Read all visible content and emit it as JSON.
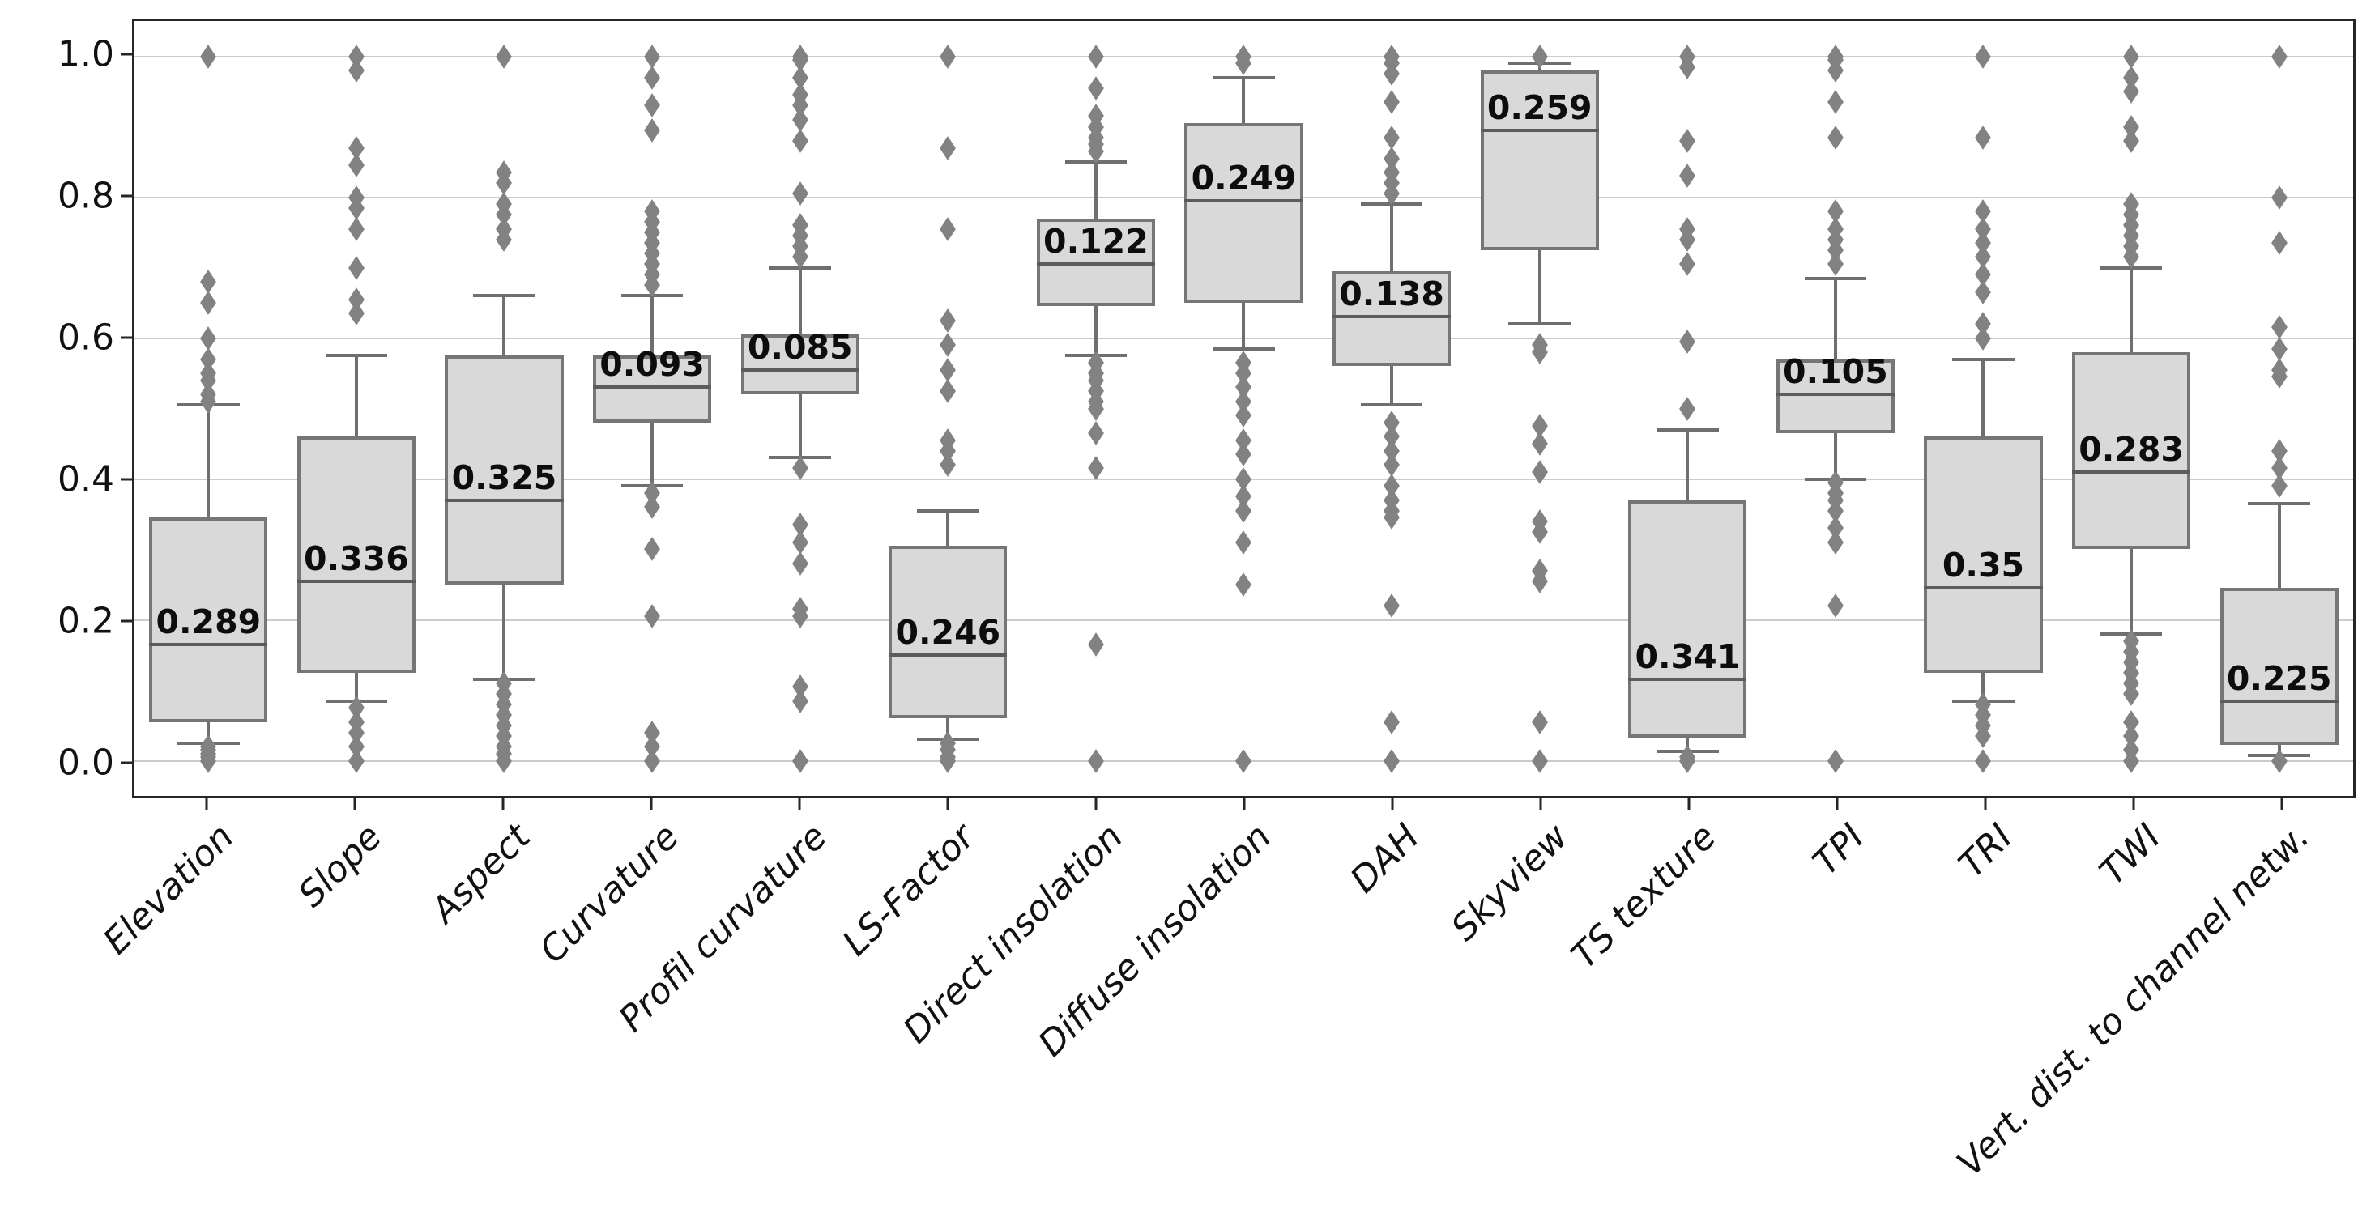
{
  "figure": {
    "background_color": "#ffffff",
    "plot_frame_color": "#262626",
    "grid_color": "#cbcbcb"
  },
  "style": {
    "box_fill_color": "#d9d9d9",
    "box_edge_color": "#767676",
    "median_line_color": "#5c5c5c",
    "whisker_color": "#6f6f6f",
    "outlier_color": "#828282",
    "annotation_color": "#0d0d0d",
    "tick_label_color": "#111111"
  },
  "chart_data": {
    "type": "box",
    "title": "",
    "xlabel": "",
    "ylabel": "",
    "ylim": [
      -0.05,
      1.05
    ],
    "grid": "horizontal",
    "legend": "none",
    "outlier_marker": "diamond",
    "yticks": [
      {
        "value": 0.0,
        "label": "0.0"
      },
      {
        "value": 0.2,
        "label": "0.2"
      },
      {
        "value": 0.4,
        "label": "0.4"
      },
      {
        "value": 0.6,
        "label": "0.6"
      },
      {
        "value": 0.8,
        "label": "0.8"
      },
      {
        "value": 1.0,
        "label": "1.0"
      }
    ],
    "categories": [
      "Elevation",
      "Slope",
      "Aspect",
      "Curvature",
      "Profil curvature",
      "LS-Factor",
      "Direct insolation",
      "Diffuse insolation",
      "DAH",
      "Skyview",
      "TS texture",
      "TPI",
      "TRI",
      "TWI",
      "Vert. dist. to channel netw."
    ],
    "annotation_meaning": "bold value printed above each median line",
    "series": [
      {
        "name": "Elevation",
        "label": "0.289",
        "whislo": 0.025,
        "q1": 0.055,
        "med": 0.165,
        "q3": 0.345,
        "whishi": 0.505,
        "fliers_high": [
          1.0,
          0.68,
          0.65,
          0.6,
          0.57,
          0.55,
          0.54,
          0.52,
          0.51
        ],
        "fliers_low": [
          0.02,
          0.015,
          0.01,
          0.005,
          0.0
        ]
      },
      {
        "name": "Slope",
        "label": "0.336",
        "whislo": 0.085,
        "q1": 0.125,
        "med": 0.255,
        "q3": 0.46,
        "whishi": 0.575,
        "fliers_high": [
          1.0,
          0.98,
          0.87,
          0.845,
          0.8,
          0.785,
          0.755,
          0.7,
          0.655,
          0.635
        ],
        "fliers_low": [
          0.075,
          0.055,
          0.04,
          0.02,
          0.0
        ]
      },
      {
        "name": "Aspect",
        "label": "0.325",
        "whislo": 0.115,
        "q1": 0.25,
        "med": 0.37,
        "q3": 0.575,
        "whishi": 0.66,
        "fliers_high": [
          1.0,
          0.835,
          0.82,
          0.79,
          0.775,
          0.755,
          0.74
        ],
        "fliers_low": [
          0.11,
          0.095,
          0.08,
          0.065,
          0.05,
          0.035,
          0.02,
          0.01,
          0.0
        ]
      },
      {
        "name": "Curvature",
        "label": "0.093",
        "whislo": 0.39,
        "q1": 0.48,
        "med": 0.53,
        "q3": 0.575,
        "whishi": 0.66,
        "fliers_high": [
          1.0,
          0.97,
          0.93,
          0.895,
          0.78,
          0.765,
          0.75,
          0.735,
          0.72,
          0.705,
          0.69,
          0.675
        ],
        "fliers_low": [
          0.38,
          0.36,
          0.3,
          0.205,
          0.04,
          0.02,
          0.0
        ]
      },
      {
        "name": "Profil curvature",
        "label": "0.085",
        "whislo": 0.43,
        "q1": 0.52,
        "med": 0.555,
        "q3": 0.605,
        "whishi": 0.7,
        "fliers_high": [
          1.0,
          0.995,
          0.97,
          0.945,
          0.93,
          0.91,
          0.88,
          0.805,
          0.76,
          0.745,
          0.73,
          0.715
        ],
        "fliers_low": [
          0.415,
          0.335,
          0.31,
          0.28,
          0.215,
          0.205,
          0.105,
          0.085,
          0.0
        ]
      },
      {
        "name": "LS-Factor",
        "label": "0.246",
        "whislo": 0.03,
        "q1": 0.06,
        "med": 0.15,
        "q3": 0.305,
        "whishi": 0.355,
        "fliers_high": [
          1.0,
          0.87,
          0.755,
          0.625,
          0.59,
          0.555,
          0.525,
          0.455,
          0.44,
          0.42
        ],
        "fliers_low": [
          0.025,
          0.015,
          0.005,
          0.0
        ]
      },
      {
        "name": "Direct insolation",
        "label": "0.122",
        "whislo": 0.575,
        "q1": 0.645,
        "med": 0.705,
        "q3": 0.77,
        "whishi": 0.85,
        "fliers_high": [
          1.0,
          0.955,
          0.915,
          0.9,
          0.885,
          0.875,
          0.865
        ],
        "fliers_low": [
          0.565,
          0.55,
          0.54,
          0.525,
          0.51,
          0.5,
          0.465,
          0.415,
          0.165,
          0.0
        ]
      },
      {
        "name": "Diffuse insolation",
        "label": "0.249",
        "whislo": 0.585,
        "q1": 0.65,
        "med": 0.795,
        "q3": 0.905,
        "whishi": 0.97,
        "fliers_high": [
          1.0,
          0.99
        ],
        "fliers_low": [
          0.565,
          0.55,
          0.53,
          0.51,
          0.49,
          0.455,
          0.435,
          0.4,
          0.375,
          0.355,
          0.31,
          0.25,
          0.0
        ]
      },
      {
        "name": "DAH",
        "label": "0.138",
        "whislo": 0.505,
        "q1": 0.56,
        "med": 0.63,
        "q3": 0.695,
        "whishi": 0.79,
        "fliers_high": [
          1.0,
          0.99,
          0.975,
          0.935,
          0.885,
          0.855,
          0.835,
          0.82,
          0.805
        ],
        "fliers_low": [
          0.48,
          0.46,
          0.44,
          0.42,
          0.39,
          0.37,
          0.355,
          0.345,
          0.22,
          0.055,
          0.0
        ]
      },
      {
        "name": "Skyview",
        "label": "0.259",
        "whislo": 0.62,
        "q1": 0.725,
        "med": 0.895,
        "q3": 0.98,
        "whishi": 0.99,
        "fliers_high": [
          1.0
        ],
        "fliers_low": [
          0.59,
          0.58,
          0.475,
          0.45,
          0.41,
          0.34,
          0.325,
          0.27,
          0.255,
          0.055,
          0.0
        ]
      },
      {
        "name": "TS texture",
        "label": "0.341",
        "whislo": 0.013,
        "q1": 0.033,
        "med": 0.115,
        "q3": 0.37,
        "whishi": 0.47,
        "fliers_high": [
          1.0,
          0.985,
          0.88,
          0.83,
          0.755,
          0.74,
          0.705,
          0.595,
          0.5
        ],
        "fliers_low": [
          0.005,
          0.0
        ]
      },
      {
        "name": "TPI",
        "label": "0.105",
        "whislo": 0.4,
        "q1": 0.465,
        "med": 0.52,
        "q3": 0.57,
        "whishi": 0.685,
        "fliers_high": [
          1.0,
          0.995,
          0.98,
          0.935,
          0.885,
          0.78,
          0.755,
          0.74,
          0.725,
          0.705
        ],
        "fliers_low": [
          0.395,
          0.38,
          0.37,
          0.355,
          0.33,
          0.31,
          0.22,
          0.0
        ]
      },
      {
        "name": "TRI",
        "label": "0.35",
        "whislo": 0.085,
        "q1": 0.125,
        "med": 0.245,
        "q3": 0.46,
        "whishi": 0.57,
        "fliers_high": [
          1.0,
          0.885,
          0.78,
          0.755,
          0.735,
          0.715,
          0.69,
          0.665,
          0.62,
          0.6
        ],
        "fliers_low": [
          0.08,
          0.065,
          0.05,
          0.035,
          0.0
        ]
      },
      {
        "name": "TWI",
        "label": "0.283",
        "whislo": 0.18,
        "q1": 0.3,
        "med": 0.41,
        "q3": 0.58,
        "whishi": 0.7,
        "fliers_high": [
          1.0,
          0.97,
          0.95,
          0.9,
          0.88,
          0.79,
          0.775,
          0.76,
          0.745,
          0.73,
          0.715
        ],
        "fliers_low": [
          0.17,
          0.155,
          0.14,
          0.125,
          0.11,
          0.095,
          0.055,
          0.035,
          0.015,
          0.0
        ]
      },
      {
        "name": "Vert. dist. to channel netw.",
        "label": "0.225",
        "whislo": 0.008,
        "q1": 0.022,
        "med": 0.085,
        "q3": 0.245,
        "whishi": 0.365,
        "fliers_high": [
          1.0,
          0.8,
          0.735,
          0.615,
          0.585,
          0.555,
          0.545,
          0.44,
          0.415,
          0.39
        ],
        "fliers_low": [
          0.0
        ]
      }
    ]
  }
}
